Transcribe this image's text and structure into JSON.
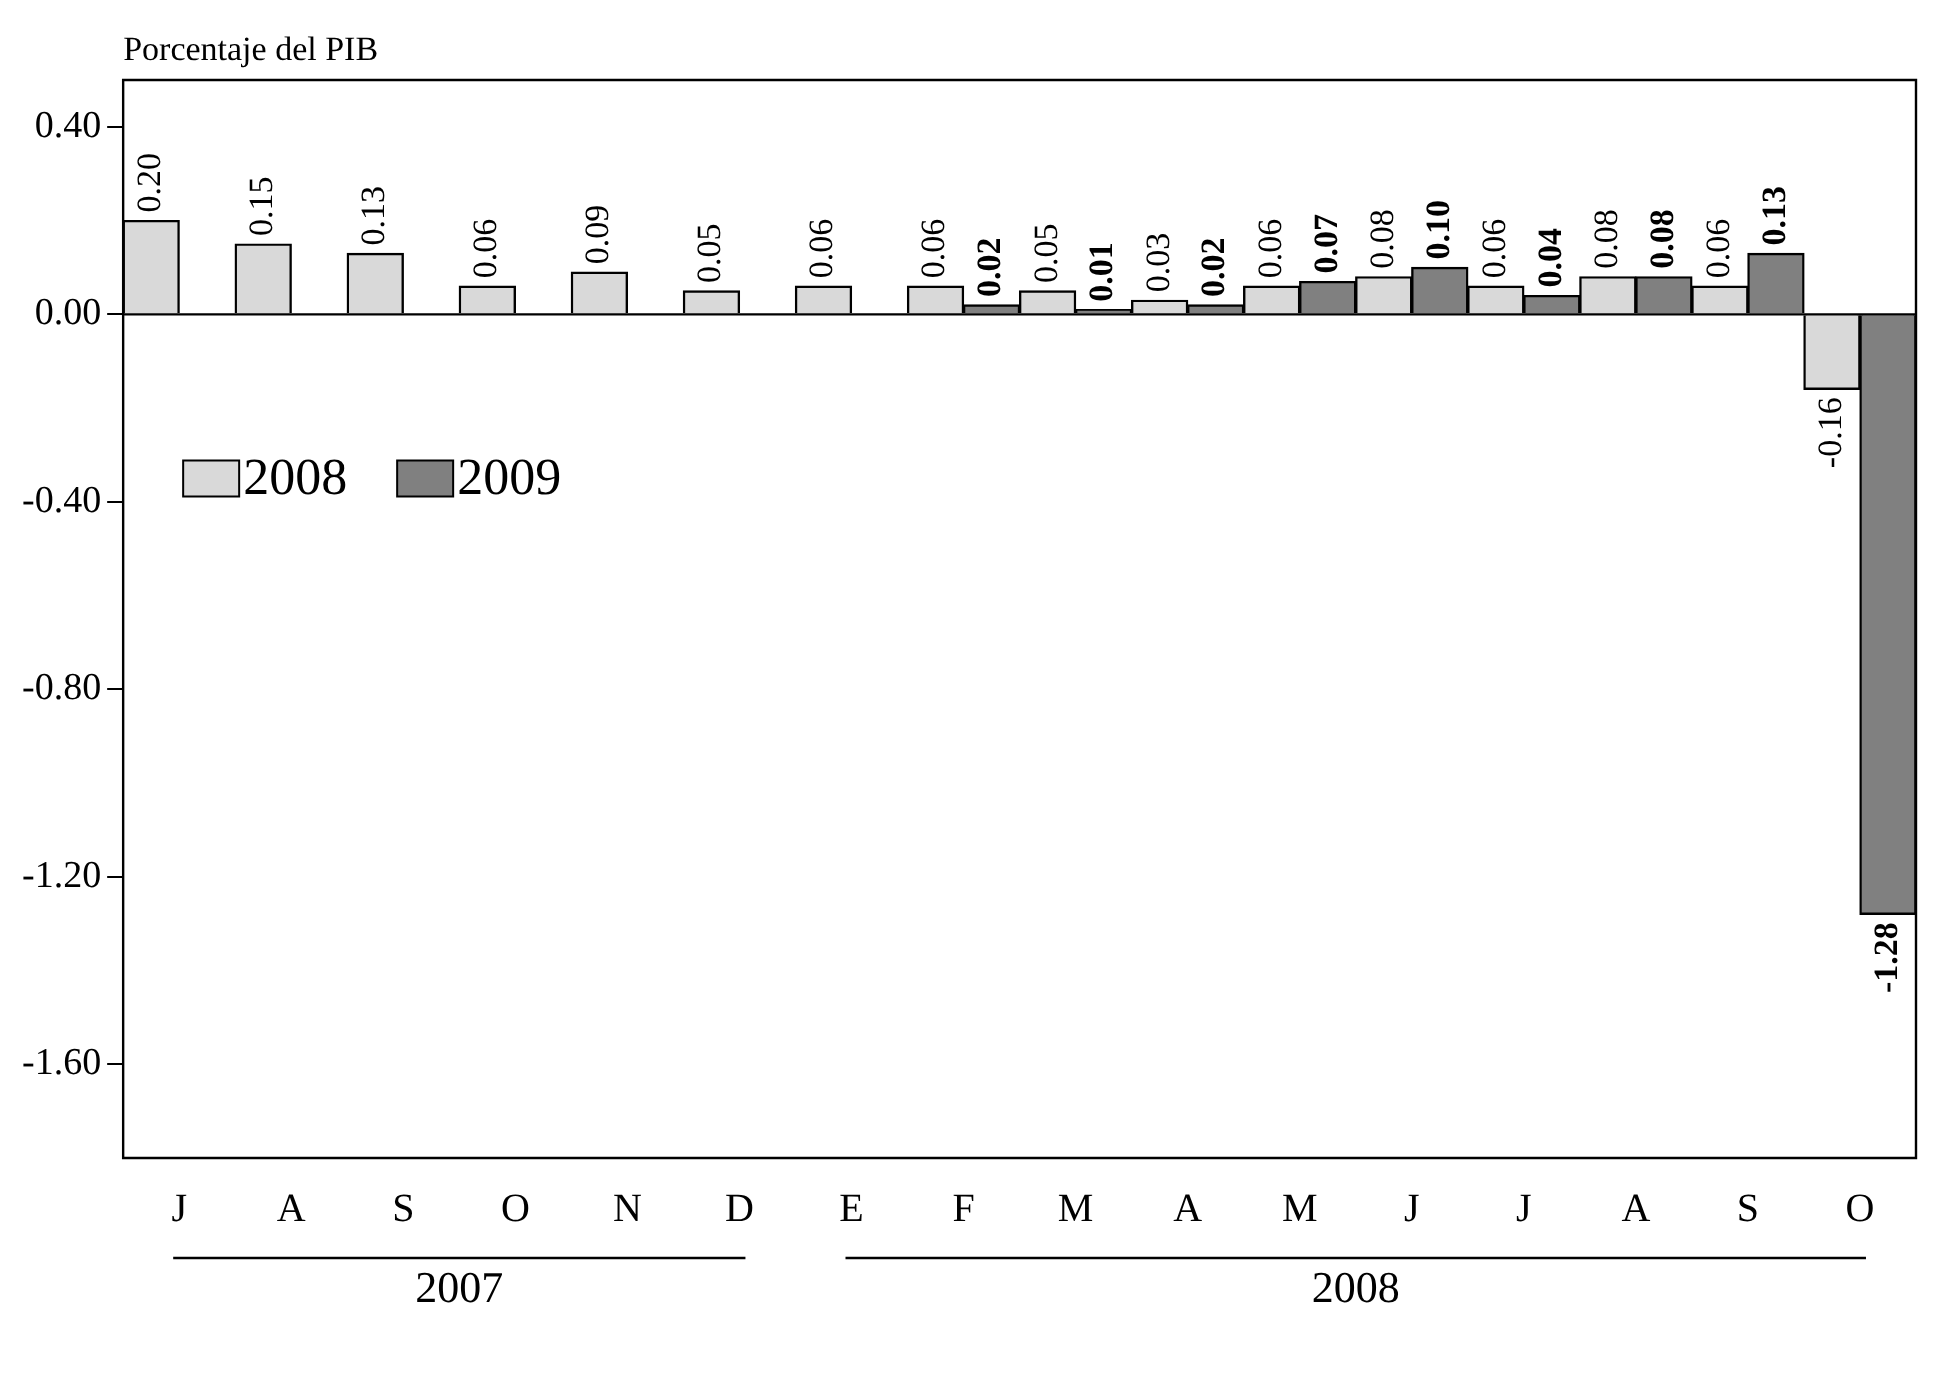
{
  "chart_data": {
    "type": "bar",
    "ylabel": "Porcentaje del PIB",
    "categories": [
      "J",
      "A",
      "S",
      "O",
      "N",
      "D",
      "E",
      "F",
      "M",
      "A",
      "M",
      "J",
      "J",
      "A",
      "S",
      "O"
    ],
    "series": [
      {
        "name": "2008",
        "color": "#d9d9d9",
        "values": [
          0.2,
          0.15,
          0.13,
          0.06,
          0.09,
          0.05,
          0.06,
          0.06,
          0.05,
          0.03,
          0.06,
          0.08,
          0.06,
          0.08,
          0.06,
          -0.16
        ],
        "value_labels": [
          "0.20",
          "0.15",
          "0.13",
          "0.06",
          "0.09",
          "0.05",
          "0.06",
          "0.06",
          "0.05",
          "0.03",
          "0.06",
          "0.08",
          "0.06",
          "0.08",
          "0.06",
          "-0.16"
        ]
      },
      {
        "name": "2009",
        "color": "#808080",
        "values": [
          null,
          null,
          null,
          null,
          null,
          null,
          null,
          0.02,
          0.01,
          0.02,
          0.07,
          0.1,
          0.04,
          0.08,
          0.13,
          -1.28
        ],
        "value_labels": [
          null,
          null,
          null,
          null,
          null,
          null,
          null,
          "0.02",
          "0.01",
          "0.02",
          "0.07",
          "0.10",
          "0.04",
          "0.08",
          "0.13",
          "-1.28"
        ]
      }
    ],
    "ylim": [
      -1.8,
      0.5
    ],
    "yticks": [
      {
        "value": 0.4,
        "label": "0.40"
      },
      {
        "value": 0.0,
        "label": "0.00"
      },
      {
        "value": -0.4,
        "label": "-0.40"
      },
      {
        "value": -0.8,
        "label": "-0.80"
      },
      {
        "value": -1.2,
        "label": "-1.20"
      },
      {
        "value": -1.6,
        "label": "-1.60"
      }
    ],
    "legend": "top left",
    "annotations": [
      "2007",
      "2008"
    ]
  }
}
